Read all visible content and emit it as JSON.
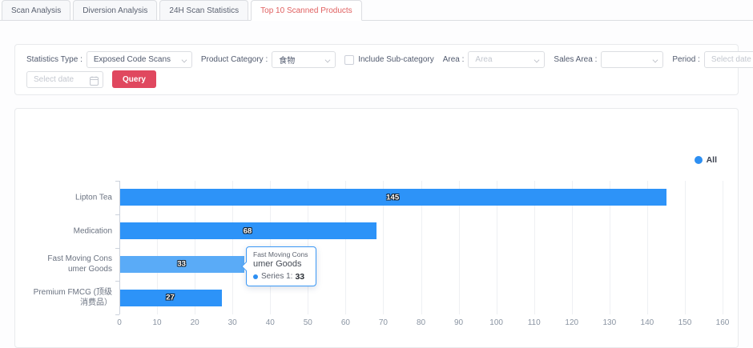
{
  "tabs": {
    "items": [
      {
        "label": "Scan Analysis",
        "active": false
      },
      {
        "label": "Diversion Analysis",
        "active": false
      },
      {
        "label": "24H Scan Statistics",
        "active": false
      },
      {
        "label": "Top 10 Scanned Products",
        "active": true
      }
    ]
  },
  "filters": {
    "statistics_type_label": "Statistics Type :",
    "statistics_type_value": "Exposed Code Scans",
    "product_category_label": "Product Category :",
    "product_category_value": "食物",
    "include_subcategory_label": "Include Sub-category",
    "include_subcategory_checked": false,
    "area_label": "Area :",
    "area_placeholder": "Area",
    "sales_area_label": "Sales Area :",
    "sales_area_value": "",
    "period_label": "Period :",
    "period_start_placeholder": "Select date",
    "period_separator": "-",
    "period_end_placeholder": "Select date",
    "query_label": "Query"
  },
  "colors": {
    "tab_active_red": "#e06060",
    "query_button_red": "#e0485f",
    "bar_blue": "#2d93f8",
    "bar_blue_highlight": "#5aabf7",
    "legend_dot_blue": "#2d8ff2",
    "tooltip_border_blue": "#3a97f5",
    "card_border": "#e8eaec"
  },
  "chart_data": {
    "type": "bar",
    "orientation": "horizontal",
    "title": "",
    "xlabel": "",
    "ylabel": "",
    "categories": [
      "Lipton Tea",
      "Medication",
      "Fast Moving Cons\numer Goods",
      "Premium FMCG (顶级\n消费品）"
    ],
    "values": [
      145,
      68,
      33,
      27
    ],
    "series": [
      {
        "name": "Series 1",
        "values": [
          145,
          68,
          33,
          27
        ]
      }
    ],
    "legend": [
      "All"
    ],
    "legend_position": "top-right",
    "xlim": [
      0,
      160
    ],
    "x_ticks": [
      0,
      10,
      20,
      30,
      40,
      50,
      60,
      70,
      80,
      90,
      100,
      110,
      120,
      130,
      140,
      150,
      160
    ],
    "grid": true,
    "value_labels_inside_bars": true,
    "bar_color": "#2d93f8",
    "highlight_color": "#5aabf7",
    "highlighted_index": 2,
    "tooltip": {
      "category_line1": "Fast Moving Cons",
      "category_line2": "umer Goods",
      "series_label": "Series 1:",
      "value": "33",
      "marker_color": "#2d8ff2"
    }
  }
}
